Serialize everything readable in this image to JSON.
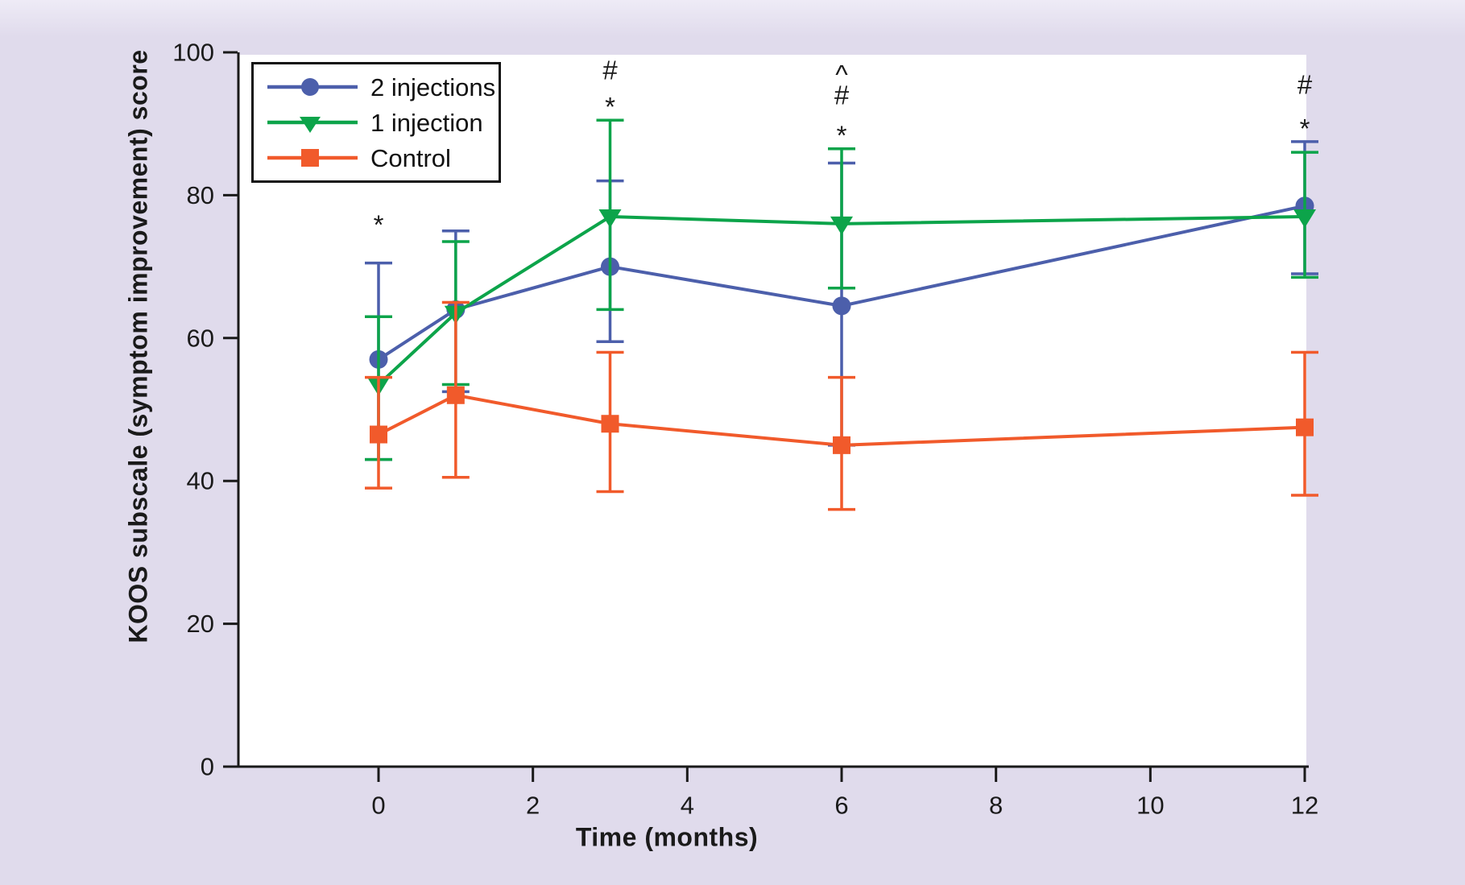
{
  "figure": {
    "background_color": "#E0DBEC",
    "plot_background": "#FFFFFF",
    "axis_color": "#1a1a1a"
  },
  "chart_data": {
    "type": "line",
    "title": "",
    "xlabel": "Time (months)",
    "ylabel": "KOOS subscale (symptom improvement) score",
    "xlim": [
      0,
      12
    ],
    "ylim": [
      0,
      100
    ],
    "x_ticks": [
      0,
      2,
      4,
      6,
      8,
      10,
      12
    ],
    "y_ticks": [
      0,
      20,
      40,
      60,
      80,
      100
    ],
    "grid": false,
    "legend_position": "top-left",
    "x": [
      0,
      1,
      3,
      6,
      12
    ],
    "series": [
      {
        "name": "2 injections",
        "marker": "circle",
        "color": "#4C5FAB",
        "values": [
          57,
          64,
          70,
          64.5,
          78.5
        ],
        "err_low": [
          43,
          52.5,
          59.5,
          45,
          69
        ],
        "err_high": [
          70.5,
          75,
          82,
          84.5,
          87.5
        ]
      },
      {
        "name": "1 injection",
        "marker": "triangle-down",
        "color": "#0CA44A",
        "values": [
          53.5,
          63.5,
          77,
          76,
          77
        ],
        "err_low": [
          43,
          53.5,
          64,
          67,
          68.5
        ],
        "err_high": [
          63,
          73.5,
          90.5,
          86.5,
          86
        ]
      },
      {
        "name": "Control",
        "marker": "square",
        "color": "#F15A2B",
        "values": [
          46.5,
          52,
          48,
          45,
          47.5
        ],
        "err_low": [
          39,
          40.5,
          38.5,
          36,
          38
        ],
        "err_high": [
          54.5,
          65,
          58,
          54.5,
          58
        ]
      }
    ],
    "annotations": [
      {
        "x": 0,
        "symbols": [
          {
            "glyph": "*",
            "y": 77
          }
        ]
      },
      {
        "x": 3,
        "symbols": [
          {
            "glyph": "#",
            "y": 97.5
          },
          {
            "glyph": "*",
            "y": 93.5
          }
        ]
      },
      {
        "x": 6,
        "symbols": [
          {
            "glyph": "^",
            "y": 98
          },
          {
            "glyph": "#",
            "y": 94
          },
          {
            "glyph": "*",
            "y": 89.5
          }
        ]
      },
      {
        "x": 12,
        "symbols": [
          {
            "glyph": "#",
            "y": 95.5
          },
          {
            "glyph": "*",
            "y": 90.5
          }
        ]
      }
    ]
  }
}
